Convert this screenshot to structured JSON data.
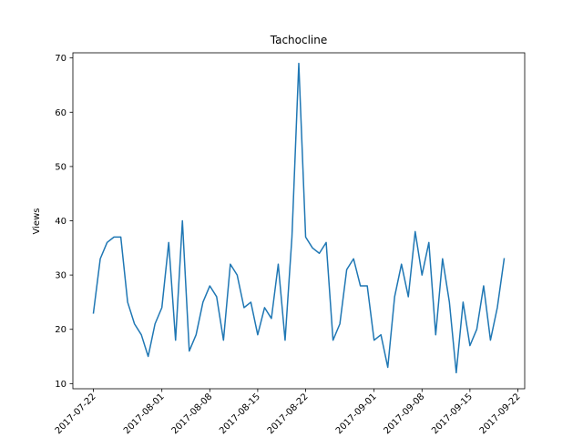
{
  "chart_data": {
    "type": "line",
    "title": "Tachocline",
    "xlabel": "",
    "ylabel": "Views",
    "ylim": [
      9.05,
      70.95
    ],
    "xlim": [
      "2017-07-19",
      "2017-09-23"
    ],
    "yticks": [
      10,
      20,
      30,
      40,
      50,
      60,
      70
    ],
    "xticks": [
      "2017-07-22",
      "2017-08-01",
      "2017-08-08",
      "2017-08-15",
      "2017-08-22",
      "2017-09-01",
      "2017-09-08",
      "2017-09-15",
      "2017-09-22"
    ],
    "grid": false,
    "color": "#1f77b4",
    "series": [
      {
        "x": [
          "2017-07-22",
          "2017-07-23",
          "2017-07-24",
          "2017-07-25",
          "2017-07-26",
          "2017-07-27",
          "2017-07-28",
          "2017-07-29",
          "2017-07-30",
          "2017-07-31",
          "2017-08-01",
          "2017-08-02",
          "2017-08-03",
          "2017-08-04",
          "2017-08-05",
          "2017-08-06",
          "2017-08-07",
          "2017-08-08",
          "2017-08-09",
          "2017-08-10",
          "2017-08-11",
          "2017-08-12",
          "2017-08-13",
          "2017-08-14",
          "2017-08-15",
          "2017-08-16",
          "2017-08-17",
          "2017-08-18",
          "2017-08-19",
          "2017-08-20",
          "2017-08-21",
          "2017-08-22",
          "2017-08-23",
          "2017-08-24",
          "2017-08-25",
          "2017-08-26",
          "2017-08-27",
          "2017-08-28",
          "2017-08-29",
          "2017-08-30",
          "2017-08-31",
          "2017-09-01",
          "2017-09-02",
          "2017-09-03",
          "2017-09-04",
          "2017-09-05",
          "2017-09-06",
          "2017-09-07",
          "2017-09-08",
          "2017-09-09",
          "2017-09-10",
          "2017-09-11",
          "2017-09-12",
          "2017-09-13",
          "2017-09-14",
          "2017-09-15",
          "2017-09-16",
          "2017-09-17",
          "2017-09-18",
          "2017-09-19",
          "2017-09-20"
        ],
        "values": [
          23,
          33,
          36,
          37,
          37,
          25,
          21,
          19,
          15,
          21,
          24,
          36,
          18,
          40,
          16,
          19,
          25,
          28,
          26,
          18,
          32,
          30,
          24,
          25,
          19,
          24,
          22,
          32,
          18,
          37,
          69,
          37,
          35,
          34,
          36,
          18,
          21,
          31,
          33,
          28,
          28,
          18,
          19,
          13,
          26,
          32,
          26,
          38,
          30,
          36,
          19,
          33,
          25,
          12,
          25,
          17,
          20,
          28,
          18,
          24,
          33
        ]
      }
    ]
  }
}
